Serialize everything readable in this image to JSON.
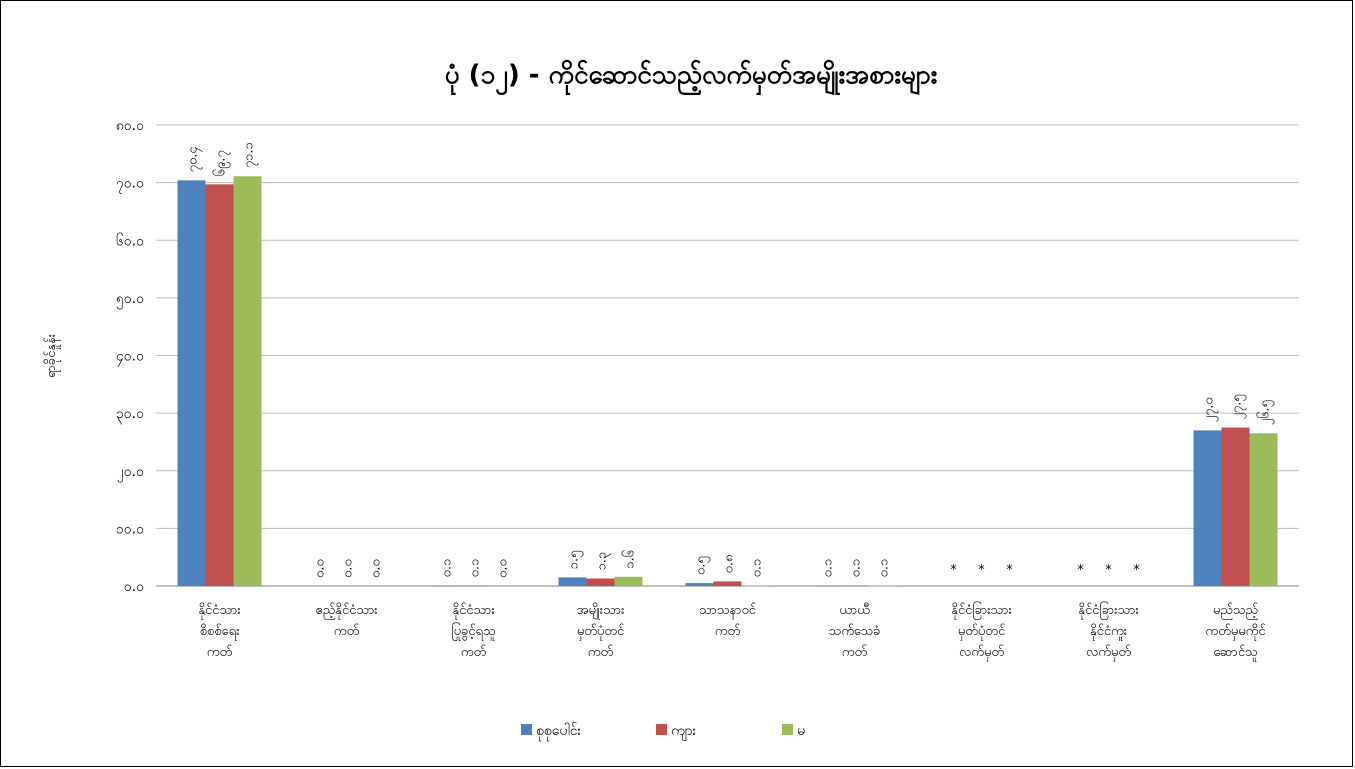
{
  "chart_data": {
    "type": "bar",
    "title": "ပုံ (၁၂) - ကိုင်ဆောင်သည့်လက်မှတ်အမျိုးအစားများ",
    "xlabel": "",
    "ylabel": "ရာခိုင်နှုန်း",
    "ylim": [
      0,
      80
    ],
    "yticks": [
      "၀.၀",
      "၁၀.၀",
      "၂၀.၀",
      "၃၀.၀",
      "၄၀.၀",
      "၅၀.၀",
      "၆၀.၀",
      "၇၀.၀",
      "၈၀.၀"
    ],
    "grid": true,
    "legend_position": "bottom",
    "categories": [
      [
        "နိုင်ငံသား",
        "စိစစ်ရေး",
        "ကတ်"
      ],
      [
        "ဧည့်နိုင်ငံသား",
        "ကတ်"
      ],
      [
        "နိုင်ငံသား",
        "ပြုခွင့်ရသူ",
        "ကတ်"
      ],
      [
        "အမျိုးသား",
        "မှတ်ပုံတင်",
        "ကတ်"
      ],
      [
        "သာသနာဝင်",
        "ကတ်"
      ],
      [
        "ယာယီ",
        "သက်သေခံ",
        "ကတ်"
      ],
      [
        "နိုင်ငံခြားသား",
        "မှတ်ပုံတင်",
        "လက်မှတ်"
      ],
      [
        "နိုင်ငံခြားသား",
        "နိုင်ငံကူး",
        "လက်မှတ်"
      ],
      [
        "မည်သည့်",
        "ကတ်မှမကိုင်",
        "ဆောင်သူ"
      ]
    ],
    "series": [
      {
        "name": "စုစုပေါင်း",
        "color": "#4F81BD",
        "values": [
          70.4,
          0.0,
          0.1,
          1.5,
          0.5,
          0.1,
          0.0,
          0.0,
          27.0
        ],
        "labels": [
          "၇၀.၄",
          "၀.၀",
          "၀.၁",
          "၁.၅",
          "၀.၅",
          "၀.၁",
          "*",
          "*",
          "၂၇.၀"
        ]
      },
      {
        "name": "ကျား",
        "color": "#C0504D",
        "values": [
          69.7,
          0.0,
          0.1,
          1.3,
          0.8,
          0.1,
          0.0,
          0.0,
          27.5
        ],
        "labels": [
          "၆၉.၇",
          "၀.၀",
          "၀.၁",
          "၁.၃",
          "၀.၈",
          "၀.၁",
          "*",
          "*",
          "၂၇.၅"
        ]
      },
      {
        "name": "မ",
        "color": "#9BBB59",
        "values": [
          71.1,
          0.0,
          0.0,
          1.6,
          0.1,
          0.1,
          0.0,
          0.0,
          26.5
        ],
        "labels": [
          "၇၁.၁",
          "၀.၀",
          "၀.၀",
          "၁.၆",
          "၀.၁",
          "၀.၁",
          "*",
          "*",
          "၂၆.၅"
        ]
      }
    ]
  }
}
